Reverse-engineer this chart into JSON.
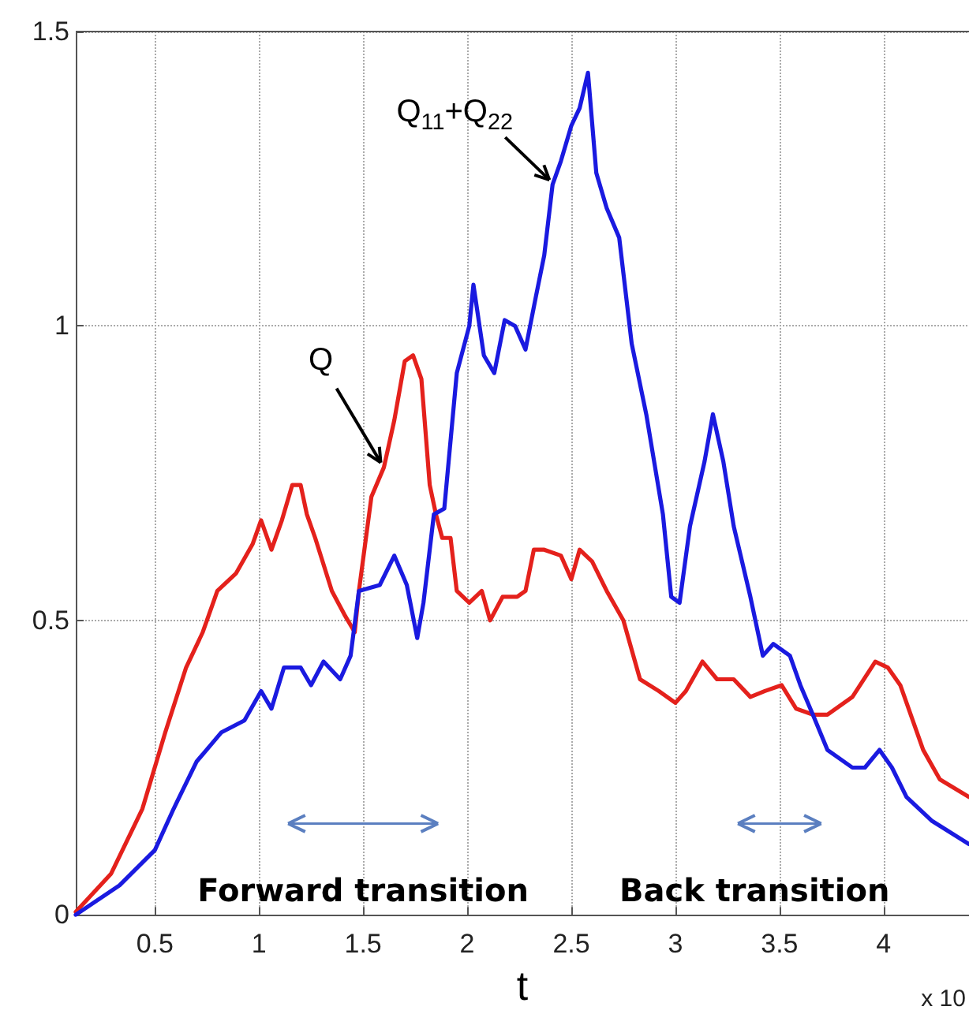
{
  "chart_data": {
    "type": "line",
    "xlabel": "t",
    "xlim": [
      0.12,
      4.41
    ],
    "xticks": [
      0.5,
      1,
      1.5,
      2,
      2.5,
      3,
      3.5,
      4
    ],
    "ylim": [
      0,
      1.5
    ],
    "yticks": [
      0,
      0.5,
      1,
      1.5
    ],
    "grid": true,
    "line_style": "solid",
    "series": [
      {
        "color": "#e4211c",
        "x": [
          0.12,
          0.29,
          0.44,
          0.55,
          0.65,
          0.73,
          0.8,
          0.89,
          0.97,
          1.01,
          1.06,
          1.11,
          1.16,
          1.2,
          1.23,
          1.27,
          1.35,
          1.41,
          1.46,
          1.48,
          1.54,
          1.6,
          1.65,
          1.7,
          1.74,
          1.78,
          1.82,
          1.85,
          1.88,
          1.92,
          1.95,
          2.01,
          2.07,
          2.11,
          2.17,
          2.24,
          2.28,
          2.32,
          2.37,
          2.45,
          2.5,
          2.54,
          2.6,
          2.67,
          2.75,
          2.83,
          2.92,
          3.0,
          3.05,
          3.13,
          3.2,
          3.28,
          3.36,
          3.43,
          3.51,
          3.58,
          3.66,
          3.73,
          3.85,
          3.96,
          4.02,
          4.08,
          4.19,
          4.27,
          4.41
        ],
        "values": [
          0.005,
          0.07,
          0.18,
          0.31,
          0.42,
          0.48,
          0.55,
          0.58,
          0.63,
          0.67,
          0.62,
          0.67,
          0.73,
          0.73,
          0.68,
          0.64,
          0.55,
          0.51,
          0.48,
          0.55,
          0.71,
          0.76,
          0.84,
          0.94,
          0.95,
          0.91,
          0.73,
          0.68,
          0.64,
          0.64,
          0.55,
          0.53,
          0.55,
          0.5,
          0.54,
          0.54,
          0.55,
          0.62,
          0.62,
          0.61,
          0.57,
          0.62,
          0.6,
          0.55,
          0.5,
          0.4,
          0.38,
          0.36,
          0.38,
          0.43,
          0.4,
          0.4,
          0.37,
          0.38,
          0.39,
          0.35,
          0.34,
          0.34,
          0.37,
          0.43,
          0.42,
          0.39,
          0.28,
          0.23,
          0.2
        ]
      },
      {
        "color": "#1a1ae0",
        "x": [
          0.12,
          0.33,
          0.5,
          0.59,
          0.7,
          0.82,
          0.93,
          1.01,
          1.06,
          1.12,
          1.2,
          1.25,
          1.31,
          1.39,
          1.44,
          1.48,
          1.58,
          1.65,
          1.71,
          1.76,
          1.79,
          1.84,
          1.89,
          1.95,
          2.01,
          2.03,
          2.08,
          2.13,
          2.18,
          2.23,
          2.28,
          2.33,
          2.37,
          2.41,
          2.45,
          2.5,
          2.54,
          2.58,
          2.62,
          2.67,
          2.73,
          2.79,
          2.86,
          2.94,
          2.98,
          3.02,
          3.07,
          3.14,
          3.18,
          3.23,
          3.28,
          3.36,
          3.42,
          3.47,
          3.55,
          3.6,
          3.66,
          3.73,
          3.85,
          3.91,
          3.98,
          4.04,
          4.11,
          4.23,
          4.41
        ],
        "values": [
          0.0,
          0.05,
          0.11,
          0.18,
          0.26,
          0.31,
          0.33,
          0.38,
          0.35,
          0.42,
          0.42,
          0.39,
          0.43,
          0.4,
          0.44,
          0.55,
          0.56,
          0.61,
          0.56,
          0.47,
          0.53,
          0.68,
          0.69,
          0.92,
          1.0,
          1.07,
          0.95,
          0.92,
          1.01,
          1.0,
          0.96,
          1.05,
          1.12,
          1.24,
          1.28,
          1.34,
          1.37,
          1.43,
          1.26,
          1.2,
          1.15,
          0.97,
          0.85,
          0.68,
          0.54,
          0.53,
          0.66,
          0.77,
          0.85,
          0.77,
          0.66,
          0.54,
          0.44,
          0.46,
          0.44,
          0.39,
          0.34,
          0.28,
          0.25,
          0.25,
          0.28,
          0.25,
          0.2,
          0.16,
          0.12
        ]
      }
    ],
    "annotations": [
      {
        "text": "Q",
        "x": 1.6,
        "y": 0.76
      },
      {
        "text": "Q$_{11}$+Q$_{22}$",
        "x": 2.41,
        "y": 1.24
      },
      "Forward transition",
      "Back transition",
      "x 10"
    ]
  }
}
